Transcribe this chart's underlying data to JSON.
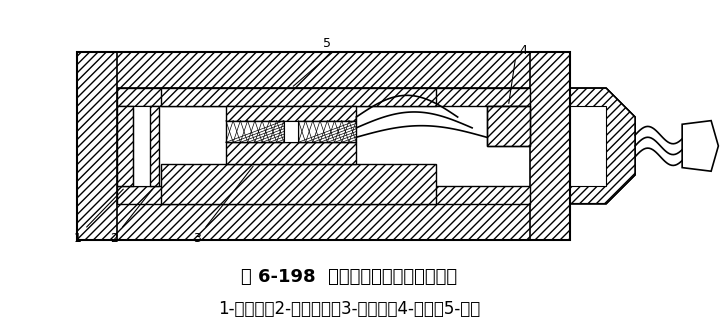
{
  "title": "图 6-198  钢弦式双膜土压力计的构造",
  "caption": "1-刚性板；2-弹性薄板；3-传力轴；4-弦夹；5-钢弦",
  "bg_color": "#ffffff",
  "line_color": "#000000",
  "title_fontsize": 13,
  "caption_fontsize": 12,
  "fig_width": 7.27,
  "fig_height": 3.28,
  "dpi": 100
}
